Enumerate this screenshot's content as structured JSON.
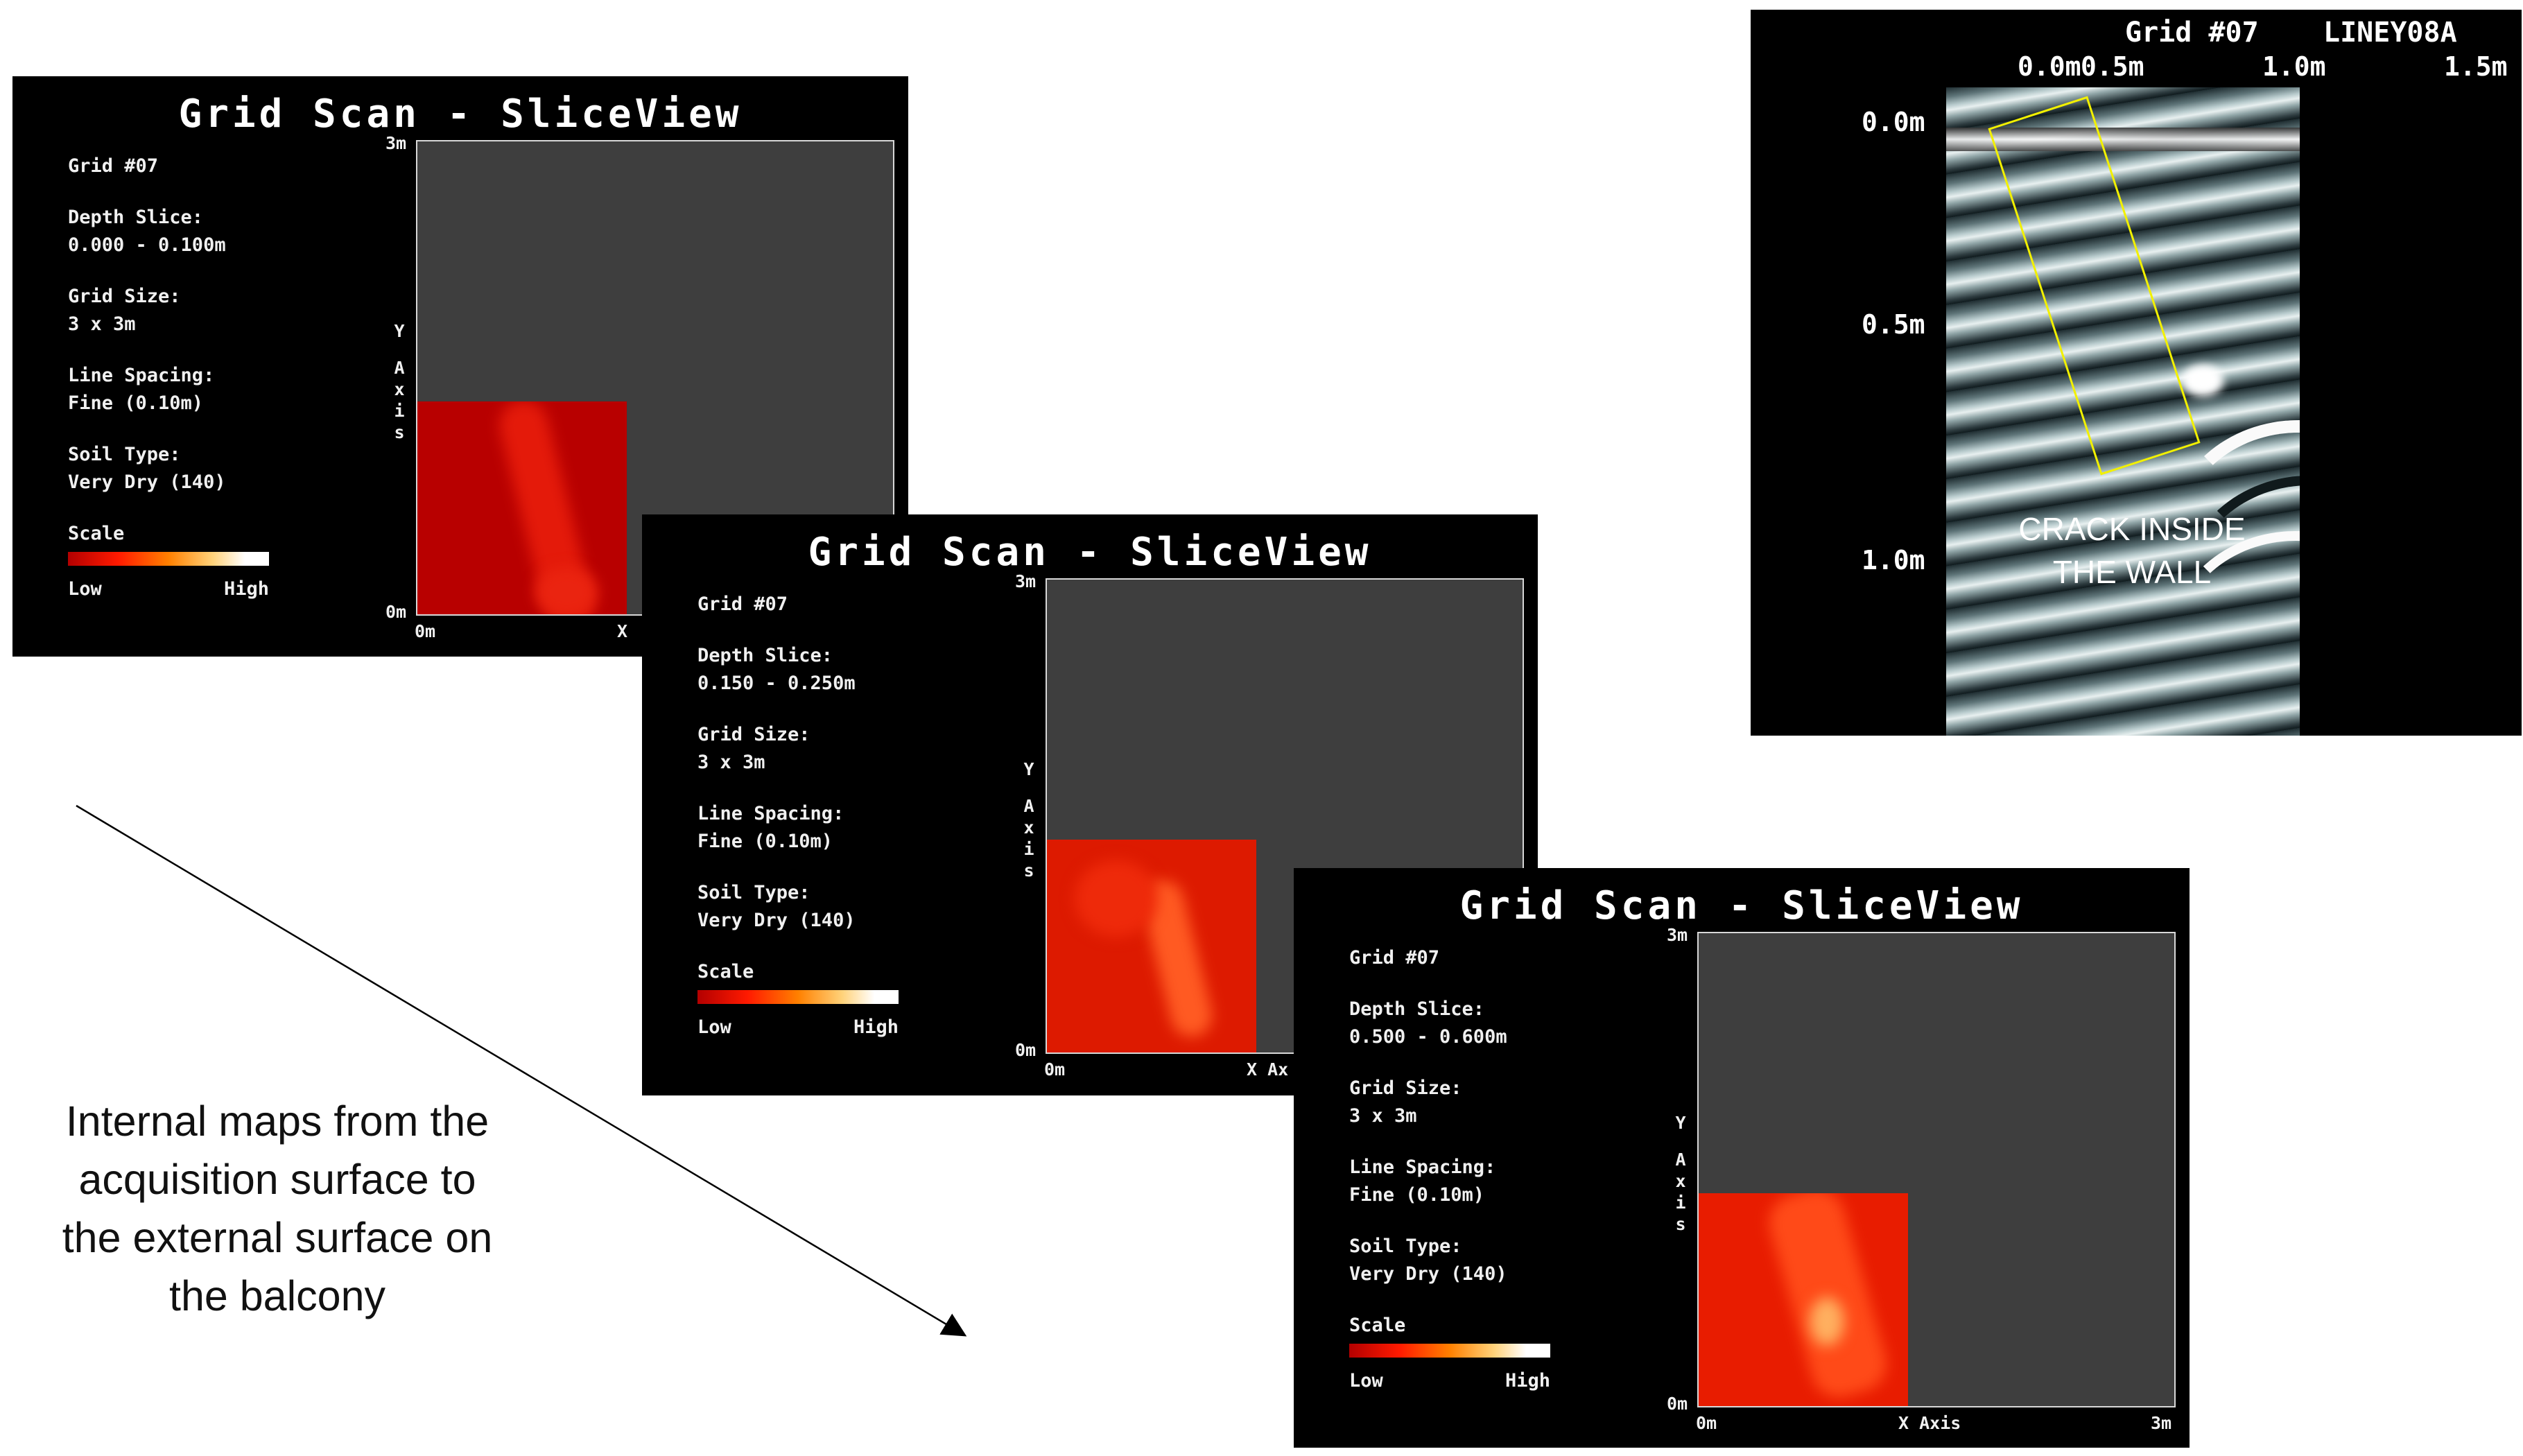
{
  "panels": [
    {
      "title": "Grid Scan - SliceView",
      "grid": "Grid #07",
      "depth_label": "Depth Slice:",
      "depth_value": "0.000 - 0.100m",
      "size_label": "Grid Size:",
      "size_value": "3 x 3m",
      "spacing_label": "Line Spacing:",
      "spacing_value": "Fine (0.10m)",
      "soil_label": "Soil Type:",
      "soil_value": "Very Dry (140)",
      "scale_label": "Scale",
      "scale_low": "Low",
      "scale_high": "High",
      "y_top": "3m",
      "y_bottom": "0m",
      "x_left": "0m",
      "x_axis": "X"
    },
    {
      "title": "Grid Scan - SliceView",
      "grid": "Grid #07",
      "depth_label": "Depth Slice:",
      "depth_value": "0.150 - 0.250m",
      "size_label": "Grid Size:",
      "size_value": "3 x 3m",
      "spacing_label": "Line Spacing:",
      "spacing_value": "Fine (0.10m)",
      "soil_label": "Soil Type:",
      "soil_value": "Very Dry (140)",
      "scale_label": "Scale",
      "scale_low": "Low",
      "scale_high": "High",
      "y_top": "3m",
      "y_bottom": "0m",
      "x_left": "0m",
      "x_axis": "X Ax"
    },
    {
      "title": "Grid Scan - SliceView",
      "grid": "Grid #07",
      "depth_label": "Depth Slice:",
      "depth_value": "0.500 - 0.600m",
      "size_label": "Grid Size:",
      "size_value": "3 x 3m",
      "spacing_label": "Line Spacing:",
      "spacing_value": "Fine (0.10m)",
      "soil_label": "Soil Type:",
      "soil_value": "Very Dry (140)",
      "scale_label": "Scale",
      "scale_low": "Low",
      "scale_high": "High",
      "y_top": "3m",
      "y_bottom": "0m",
      "x_left": "0m",
      "x_axis": "X Axis",
      "x_right": "3m"
    }
  ],
  "y_axis_letters": [
    "Y",
    "A",
    "x",
    "i",
    "s"
  ],
  "gpr": {
    "title": "Grid #07",
    "line": "LINEY08A",
    "x_ticks": [
      "0.0m",
      "0.5m",
      "1.0m",
      "1.5m"
    ],
    "y_ticks": [
      "0.0m",
      "0.5m",
      "1.0m"
    ],
    "annotation_line1": "CRACK INSIDE",
    "annotation_line2": "THE WALL",
    "box_color": "#f2f000"
  },
  "caption": {
    "line1": "Internal maps from the",
    "line2": "acquisition surface to",
    "line3": "the external surface on",
    "line4": "the balcony"
  }
}
